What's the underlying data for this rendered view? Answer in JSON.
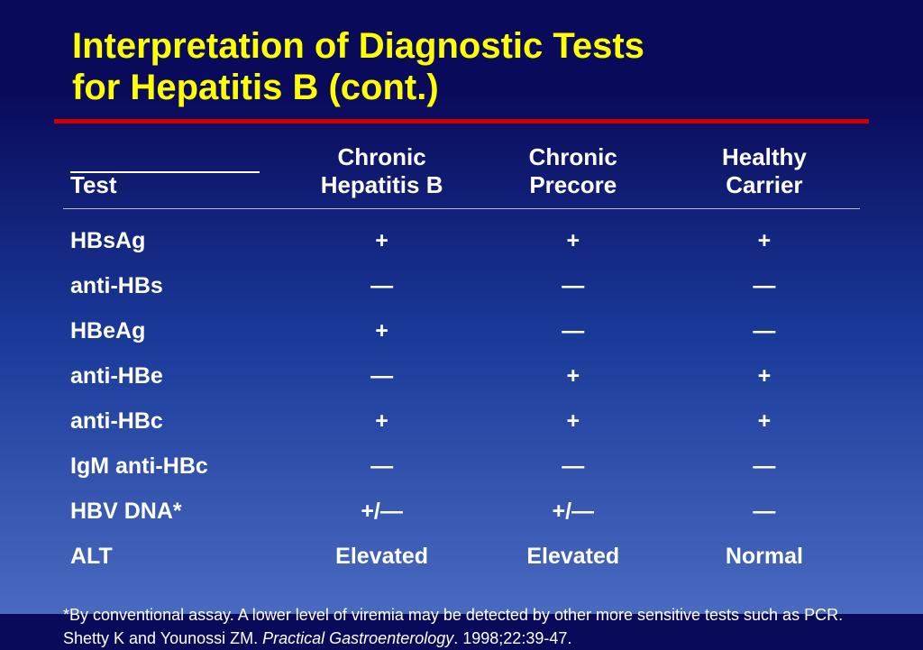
{
  "colors": {
    "bg_top": "#0a0a5a",
    "bg_mid": "#1a3a9a",
    "bg_bottom": "#4a6ac0",
    "title": "#ffff00",
    "rule": "#d00000",
    "text": "#ffffff",
    "hr": "#b8bfe0"
  },
  "title_line1": "Interpretation of Diagnostic Tests",
  "title_line2": "for Hepatitis B (cont.)",
  "columns": {
    "test_label": "Test",
    "col1_line1": "Chronic",
    "col1_line2": "Hepatitis B",
    "col2_line1": "Chronic",
    "col2_line2": "Precore",
    "col3_line1": "Healthy",
    "col3_line2": "Carrier"
  },
  "rows": [
    {
      "test": "HBsAg",
      "c1": "+",
      "c2": "+",
      "c3": "+"
    },
    {
      "test": "anti-HBs",
      "c1": "—",
      "c2": "—",
      "c3": "—"
    },
    {
      "test": "HBeAg",
      "c1": "+",
      "c2": "—",
      "c3": "—"
    },
    {
      "test": "anti-HBe",
      "c1": "—",
      "c2": "+",
      "c3": "+"
    },
    {
      "test": "anti-HBc",
      "c1": "+",
      "c2": "+",
      "c3": "+"
    },
    {
      "test": "IgM anti-HBc",
      "c1": "—",
      "c2": "—",
      "c3": "—"
    },
    {
      "test": "HBV DNA*",
      "c1": "+/—",
      "c2": "+/—",
      "c3": "—"
    },
    {
      "test": "ALT",
      "c1": "Elevated",
      "c2": "Elevated",
      "c3": "Normal"
    }
  ],
  "footnote_line1": "*By conventional assay.  A lower level of viremia may be detected by other more sensitive tests such as PCR.",
  "footnote_author": "Shetty K and Younossi ZM.   ",
  "footnote_journal": "Practical Gastroenterology",
  "footnote_cite": ". 1998;22:39-47."
}
